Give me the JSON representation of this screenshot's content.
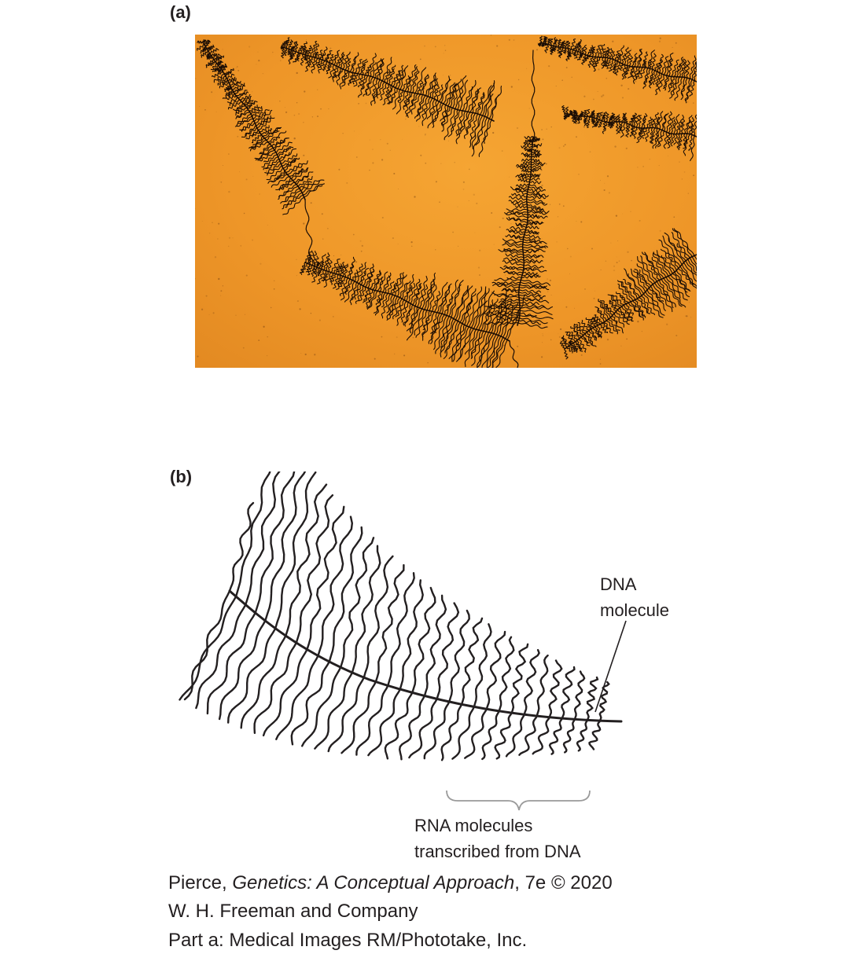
{
  "panels": {
    "a": {
      "label": "(a)"
    },
    "b": {
      "label": "(b)"
    }
  },
  "diagram": {
    "dna_label_line1": "DNA",
    "dna_label_line2": "molecule",
    "rna_label_line1": "RNA molecules",
    "rna_label_line2": "transcribed from DNA"
  },
  "credits": {
    "line1_author": "Pierce, ",
    "line1_title": "Genetics: A Conceptual Approach",
    "line1_edition": ", 7e © 2020",
    "line2": "W. H. Freeman and Company",
    "line3": "Part a: Medical Images RM/Phototake, Inc."
  },
  "colors": {
    "micrograph_background": "#f09a2a",
    "micrograph_ink": "#1a0d05",
    "line_ink": "#231f20",
    "bracket": "#9a9a9a"
  }
}
